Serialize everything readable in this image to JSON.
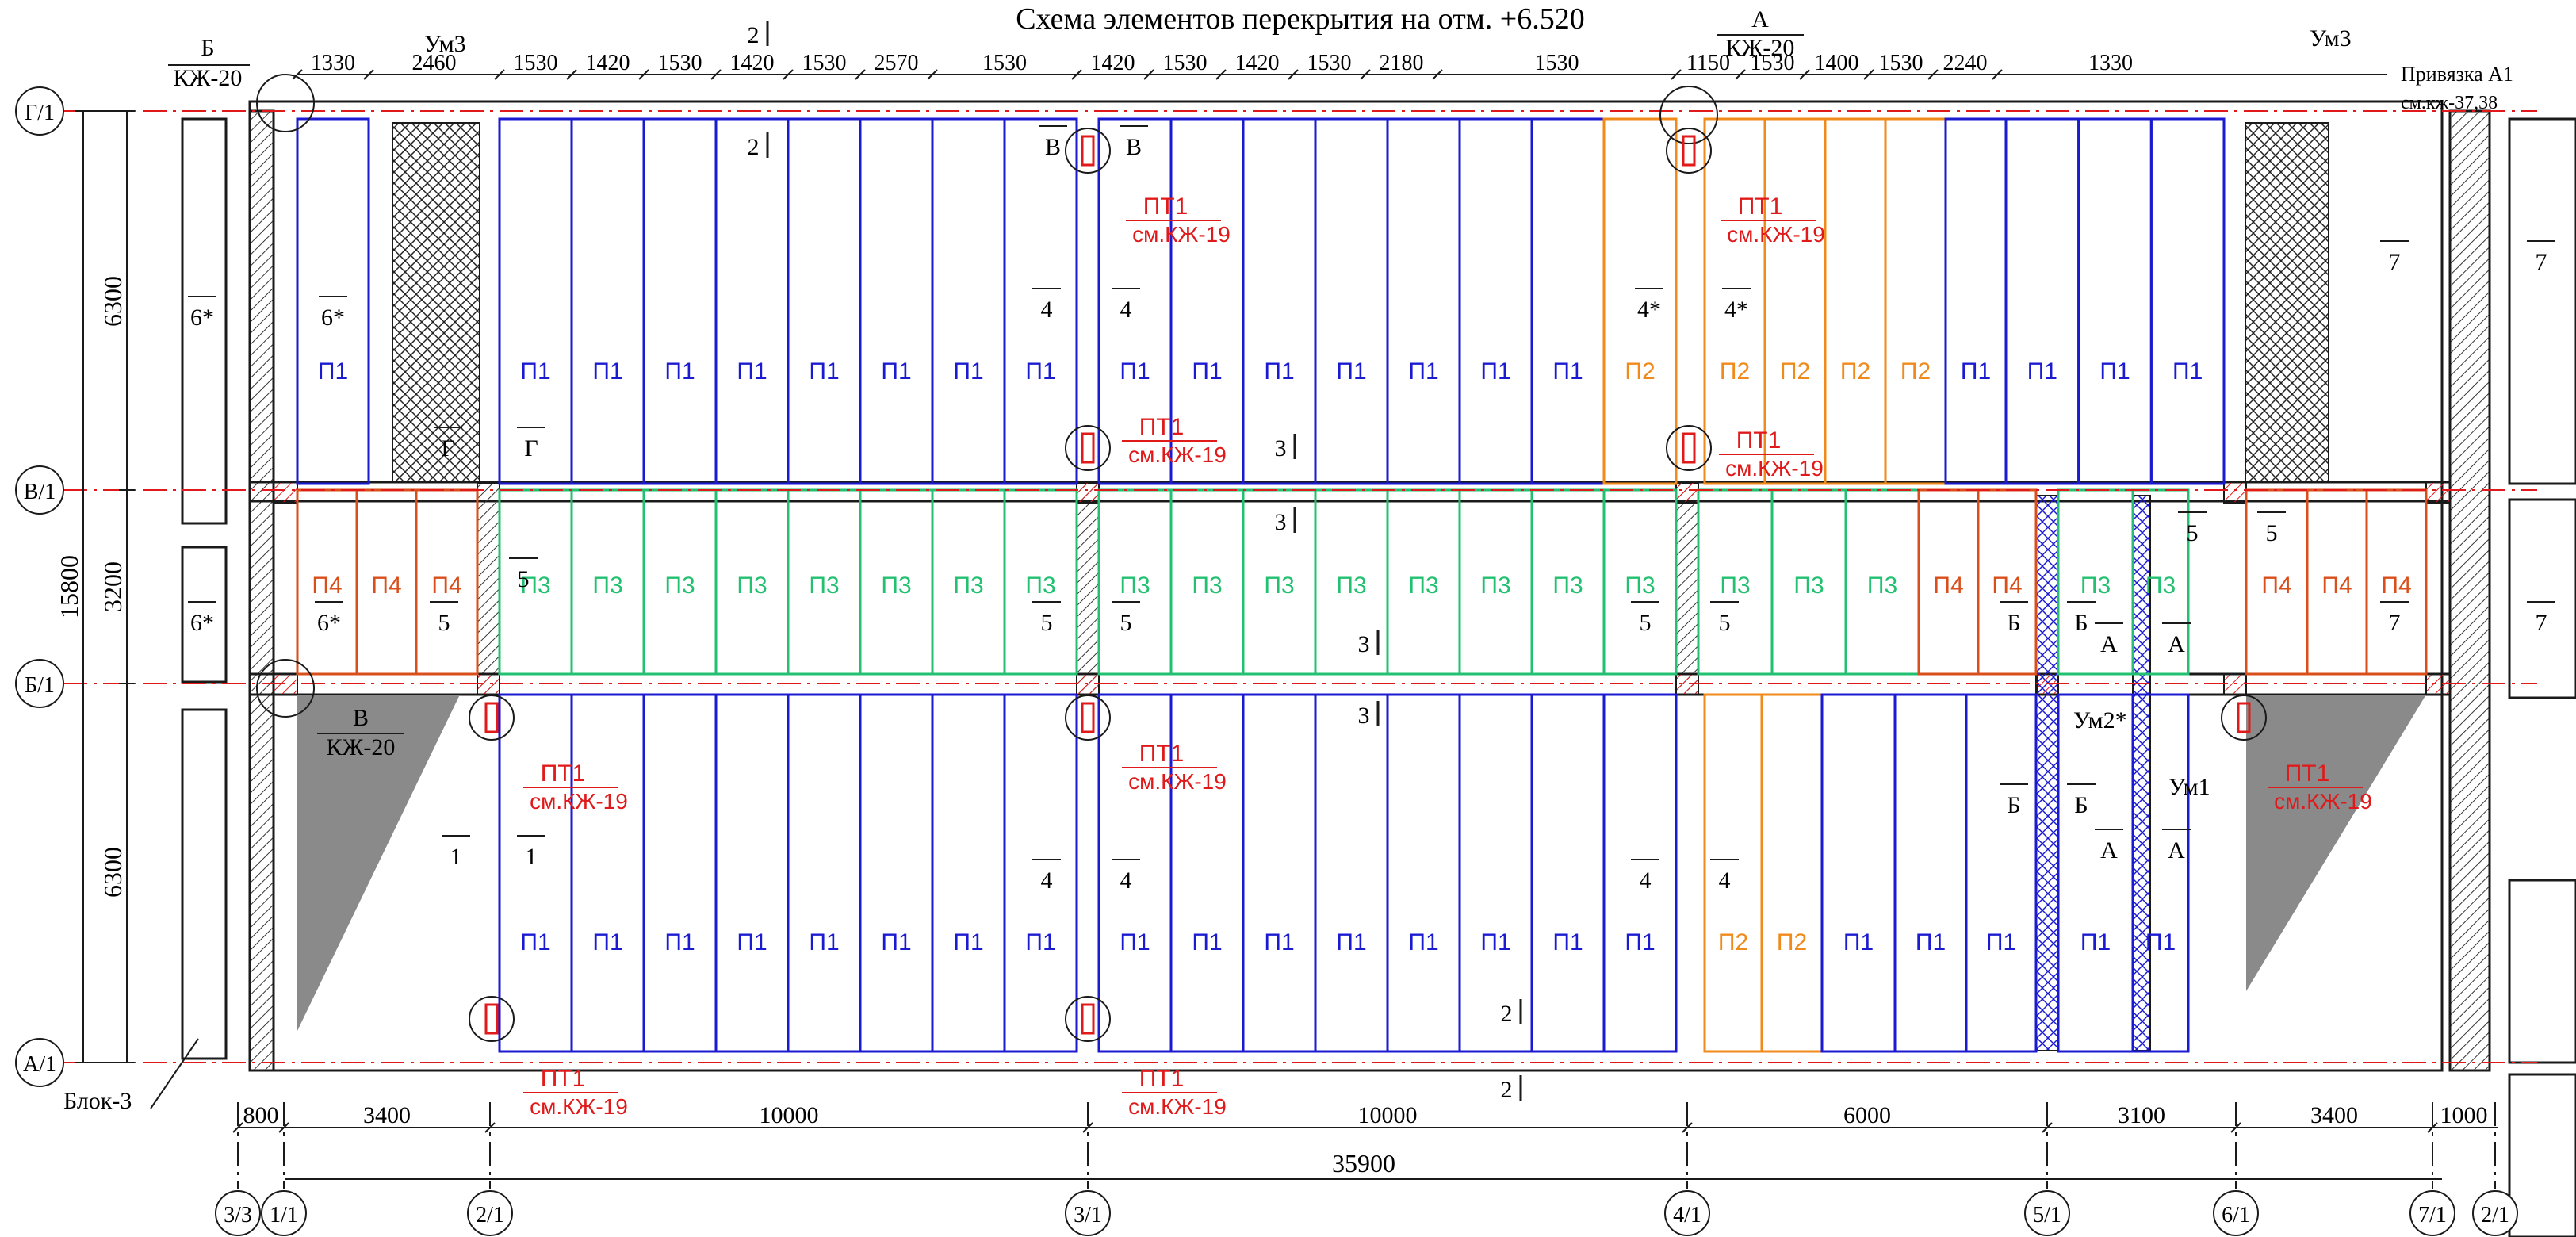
{
  "title": "Схема  элементов перекрытия на отм. +6.520",
  "grid": {
    "rows": [
      "Г/1",
      "В/1",
      "Б/1",
      "А/1"
    ],
    "cols": [
      "3/3",
      "1/1",
      "2/1",
      "3/1",
      "4/1",
      "5/1",
      "6/1",
      "7/1",
      "2/1"
    ]
  },
  "dims": {
    "top": [
      "1330",
      "2460",
      "1530",
      "1420",
      "1530",
      "1420",
      "1530",
      "2570",
      "1530",
      "1420",
      "1530",
      "1420",
      "1530",
      "2180",
      "1530",
      "1150",
      "1530",
      "1400",
      "1530",
      "2240",
      "1330"
    ],
    "bottom": [
      "800",
      "3400",
      "10000",
      "10000",
      "6000",
      "3100",
      "3400",
      "1000"
    ],
    "total": "35900",
    "left_outer": "15800",
    "left": [
      "6300",
      "3200",
      "6300"
    ]
  },
  "top_right": {
    "line1": "Привязка А1",
    "line2": "см.кж-37,38"
  },
  "block_label": "Блок-3",
  "callouts": {
    "b_kzh20": {
      "letter": "Б",
      "ref": "КЖ-20"
    },
    "a_kzh20": {
      "letter": "А",
      "ref": "КЖ-20"
    },
    "v_kzh20": {
      "letter": "В",
      "ref": "КЖ-20"
    },
    "um3": "Ум3",
    "um2": "Ум2*",
    "um1": "Ум1",
    "pt1": "ПТ1",
    "pt1_ref": "см.КЖ-19"
  },
  "slabs": {
    "p1": "П1",
    "p2": "П2",
    "p3": "П3",
    "p4": "П4",
    "top_row": [
      "П1",
      "П1",
      "П1",
      "П1",
      "П1",
      "П1",
      "П1",
      "П1",
      "П1",
      "П1",
      "П1",
      "П1",
      "П1",
      "П1",
      "П1",
      "П1",
      "П2",
      "П2",
      "П2",
      "П2",
      "П2",
      "П1",
      "П1",
      "П1",
      "П1"
    ],
    "mid_row": [
      "П4",
      "П4",
      "П4",
      "П3",
      "П3",
      "П3",
      "П3",
      "П3",
      "П3",
      "П3",
      "П3",
      "П3",
      "П3",
      "П3",
      "П3",
      "П3",
      "П3",
      "П3",
      "П3",
      "П3",
      "П3",
      "П3",
      "П4",
      "П4",
      "П3",
      "П3",
      "П4",
      "П4",
      "П4"
    ],
    "bottom_row": [
      "П1",
      "П1",
      "П1",
      "П1",
      "П1",
      "П1",
      "П1",
      "П1",
      "П1",
      "П1",
      "П1",
      "П1",
      "П1",
      "П1",
      "П1",
      "П1",
      "П2",
      "П2",
      "П1",
      "П1",
      "П1",
      "П1",
      "П1"
    ]
  },
  "section_marks": [
    "1",
    "2",
    "3",
    "4",
    "4*",
    "5",
    "6*",
    "7",
    "А",
    "Б",
    "В",
    "Г"
  ],
  "colors": {
    "p1": "#1a1ad0",
    "p2": "#f08a1a",
    "p3": "#22c070",
    "p4": "#d94e1a",
    "red": "#e01a1a",
    "line": "#1a1a1a"
  }
}
